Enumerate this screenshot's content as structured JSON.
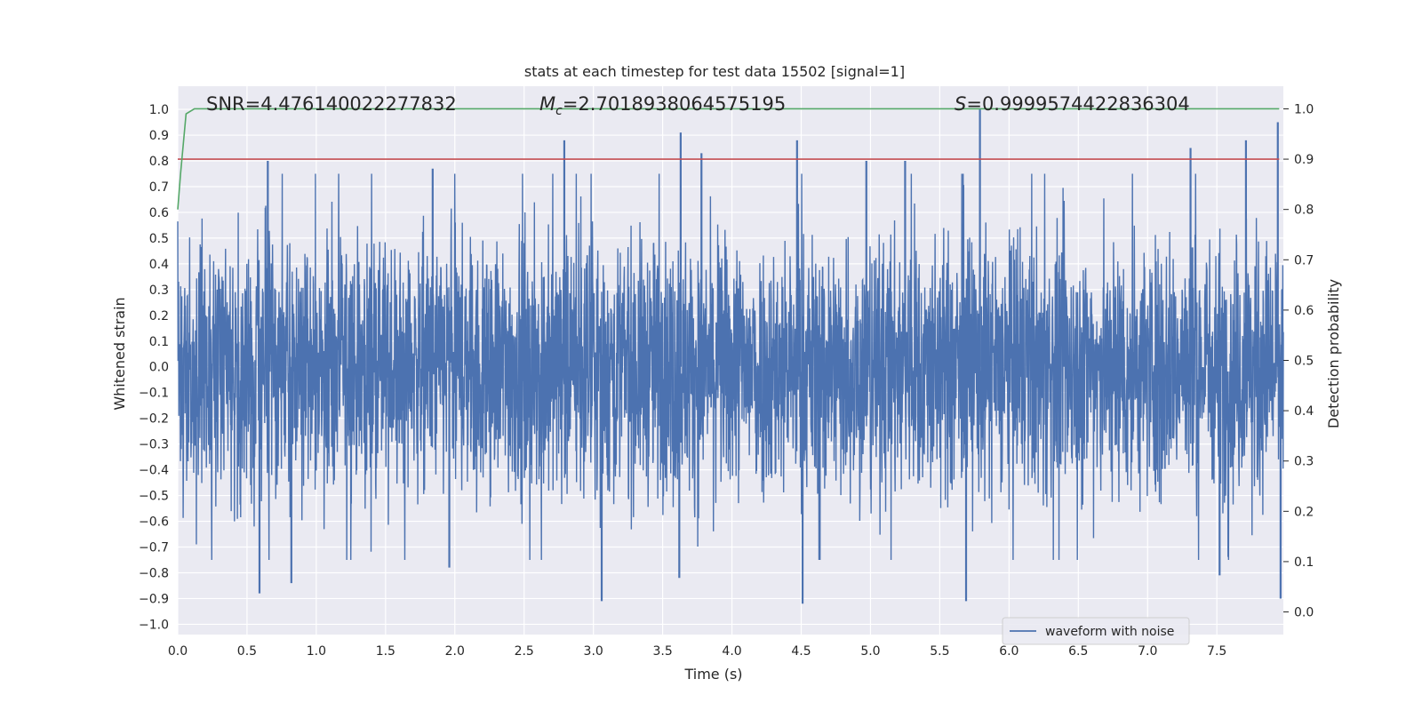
{
  "chart_data": {
    "type": "line",
    "title": "stats at each timestep for test data 15502 [signal=1]",
    "xlabel": "Time (s)",
    "ylabel": "Whitened strain",
    "y2label": "Detection probability",
    "xlim": [
      0.0,
      7.98
    ],
    "ylim": [
      -1.04,
      1.09
    ],
    "y2lim": [
      -0.045,
      1.045
    ],
    "x_ticks": [
      "0.0",
      "0.5",
      "1.0",
      "1.5",
      "2.0",
      "2.5",
      "3.0",
      "3.5",
      "4.0",
      "4.5",
      "5.0",
      "5.5",
      "6.0",
      "6.5",
      "7.0",
      "7.5"
    ],
    "y_ticks": [
      "1.0",
      "0.9",
      "0.8",
      "0.7",
      "0.6",
      "0.5",
      "0.4",
      "0.3",
      "0.2",
      "0.1",
      "0.0",
      "−0.1",
      "−0.2",
      "−0.3",
      "−0.4",
      "−0.5",
      "−0.6",
      "−0.7",
      "−0.8",
      "−0.9",
      "−1.0"
    ],
    "y2_ticks": [
      "1.0",
      "0.9",
      "0.8",
      "0.7",
      "0.6",
      "0.5",
      "0.4",
      "0.3",
      "0.2",
      "0.1",
      "0.0"
    ],
    "annotations": {
      "snr": "SNR=4.476140022277832",
      "mc_symbol": "M",
      "mc_sub": "c",
      "mc_value": "=2.7018938064575195",
      "s_symbol": "S",
      "s_value": "=0.9999574422836304"
    },
    "legend": {
      "label": "waveform with noise",
      "placement": "lower-right"
    },
    "series": [
      {
        "name": "waveform with noise",
        "axis": "left",
        "color": "#4c72b0",
        "description_samples": 4096,
        "seed": 15502,
        "spikes": [
          {
            "x": 0.65,
            "y": 0.8
          },
          {
            "x": 1.84,
            "y": 0.77
          },
          {
            "x": 2.79,
            "y": 0.88
          },
          {
            "x": 3.63,
            "y": 0.91
          },
          {
            "x": 3.78,
            "y": 0.83
          },
          {
            "x": 4.47,
            "y": 0.88
          },
          {
            "x": 5.79,
            "y": 1.0
          },
          {
            "x": 7.94,
            "y": 0.95
          },
          {
            "x": 7.71,
            "y": 0.88
          },
          {
            "x": 7.31,
            "y": 0.85
          },
          {
            "x": 5.25,
            "y": 0.8
          },
          {
            "x": 4.97,
            "y": 0.8
          },
          {
            "x": 0.59,
            "y": -0.88
          },
          {
            "x": 0.82,
            "y": -0.84
          },
          {
            "x": 3.06,
            "y": -0.91
          },
          {
            "x": 4.51,
            "y": -0.92
          },
          {
            "x": 5.69,
            "y": -0.91
          },
          {
            "x": 7.96,
            "y": -0.9
          },
          {
            "x": 3.62,
            "y": -0.82
          },
          {
            "x": 1.96,
            "y": -0.78
          },
          {
            "x": 7.52,
            "y": -0.81
          }
        ]
      },
      {
        "name": "",
        "axis": "right",
        "color": "#55a868",
        "x": [
          0.0,
          0.02,
          0.04,
          0.06,
          0.12,
          0.5,
          1.0,
          2.0,
          3.0,
          4.0,
          5.0,
          6.0,
          7.0,
          7.95
        ],
        "y": [
          0.8,
          0.87,
          0.93,
          0.99,
          1.0,
          1.0,
          1.0,
          1.0,
          1.0,
          1.0,
          1.0,
          1.0,
          1.0,
          1.0
        ]
      },
      {
        "name": "",
        "axis": "right",
        "color": "#c44e52",
        "x": [
          0.0,
          7.95
        ],
        "y": [
          0.9,
          0.9
        ]
      }
    ],
    "grid": true,
    "colors": {
      "plot_bg": "#eaeaf2",
      "grid": "#ffffff",
      "text": "#262626"
    }
  }
}
